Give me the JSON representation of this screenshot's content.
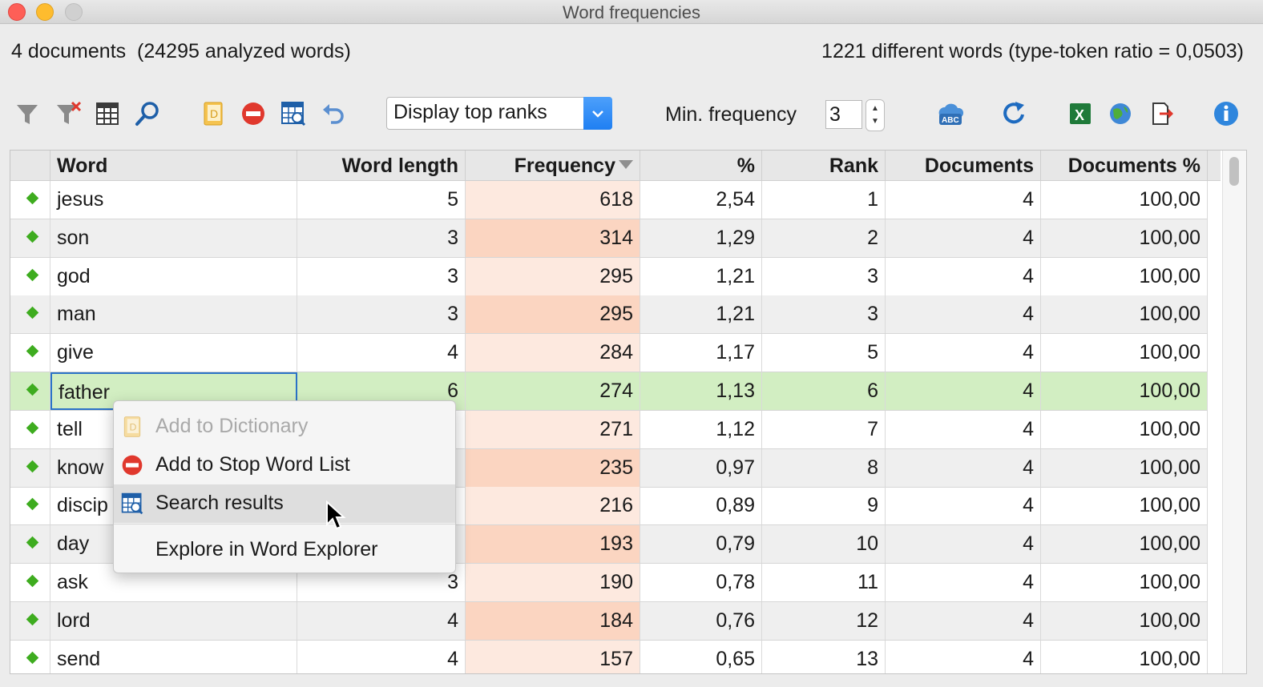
{
  "window": {
    "title": "Word frequencies",
    "controls": [
      "close",
      "minimize",
      "zoom"
    ]
  },
  "summary": {
    "left": "4 documents  (24295 analyzed words)",
    "right": "1221 different words (type-token ratio = 0,0503)"
  },
  "toolbar": {
    "icons": [
      "filter-icon",
      "clear-filter-icon",
      "columns-icon",
      "search-icon",
      "dictionary-icon",
      "stop-word-icon",
      "search-results-icon",
      "undo-icon",
      "spellcheck-icon",
      "refresh-icon",
      "excel-export-icon",
      "web-export-icon",
      "export-icon",
      "info-icon"
    ],
    "display_select": "Display top ranks",
    "min_frequency_label": "Min. frequency",
    "min_frequency_value": "3"
  },
  "table": {
    "headers": [
      "Word",
      "Word length",
      "Frequency",
      "%",
      "Rank",
      "Documents",
      "Documents %"
    ],
    "sorted_column": "Frequency",
    "rows": [
      {
        "word": "jesus",
        "length": "5",
        "frequency": "618",
        "percent": "2,54",
        "rank": "1",
        "documents": "4",
        "documents_percent": "100,00"
      },
      {
        "word": "son",
        "length": "3",
        "frequency": "314",
        "percent": "1,29",
        "rank": "2",
        "documents": "4",
        "documents_percent": "100,00"
      },
      {
        "word": "god",
        "length": "3",
        "frequency": "295",
        "percent": "1,21",
        "rank": "3",
        "documents": "4",
        "documents_percent": "100,00"
      },
      {
        "word": "man",
        "length": "3",
        "frequency": "295",
        "percent": "1,21",
        "rank": "3",
        "documents": "4",
        "documents_percent": "100,00"
      },
      {
        "word": "give",
        "length": "4",
        "frequency": "284",
        "percent": "1,17",
        "rank": "5",
        "documents": "4",
        "documents_percent": "100,00"
      },
      {
        "word": "father",
        "length": "6",
        "frequency": "274",
        "percent": "1,13",
        "rank": "6",
        "documents": "4",
        "documents_percent": "100,00"
      },
      {
        "word": "tell",
        "length": "",
        "frequency": "271",
        "percent": "1,12",
        "rank": "7",
        "documents": "4",
        "documents_percent": "100,00"
      },
      {
        "word": "know",
        "length": "",
        "frequency": "235",
        "percent": "0,97",
        "rank": "8",
        "documents": "4",
        "documents_percent": "100,00"
      },
      {
        "word": "discip",
        "length": "",
        "frequency": "216",
        "percent": "0,89",
        "rank": "9",
        "documents": "4",
        "documents_percent": "100,00"
      },
      {
        "word": "day",
        "length": "",
        "frequency": "193",
        "percent": "0,79",
        "rank": "10",
        "documents": "4",
        "documents_percent": "100,00"
      },
      {
        "word": "ask",
        "length": "3",
        "frequency": "190",
        "percent": "0,78",
        "rank": "11",
        "documents": "4",
        "documents_percent": "100,00"
      },
      {
        "word": "lord",
        "length": "4",
        "frequency": "184",
        "percent": "0,76",
        "rank": "12",
        "documents": "4",
        "documents_percent": "100,00"
      },
      {
        "word": "send",
        "length": "4",
        "frequency": "157",
        "percent": "0,65",
        "rank": "13",
        "documents": "4",
        "documents_percent": "100,00"
      }
    ]
  },
  "context_menu": {
    "items": [
      {
        "label": "Add to Dictionary",
        "enabled": false
      },
      {
        "label": "Add to Stop Word List",
        "enabled": true
      },
      {
        "label": "Search results",
        "enabled": true,
        "hovered": true
      },
      {
        "label": "Explore in Word Explorer",
        "enabled": true
      }
    ]
  },
  "colors": {
    "selected_row": "#d2eec2",
    "frequency_light": "#fde9df",
    "frequency_dark": "#fbd5c1",
    "row_marker": "#3eac1f",
    "accent_blue": "#1f7ff2"
  }
}
